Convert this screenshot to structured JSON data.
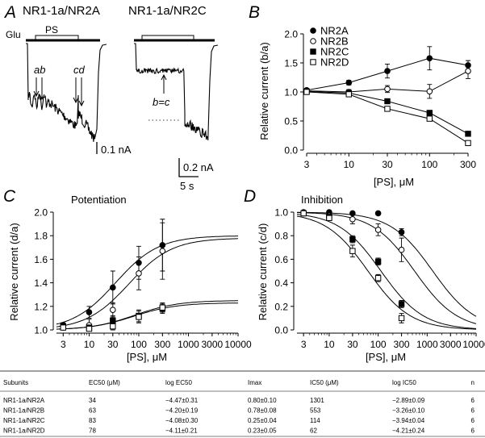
{
  "panel_a": {
    "letter": "A",
    "title_left": "NR1-1a/NR2A",
    "title_right": "NR1-1a/NR2C",
    "glu_label": "Glu",
    "ps_label": "PS",
    "label_ab": "ab",
    "label_cd": "cd",
    "label_bc": "b=c",
    "scale_left": "0.1 nA",
    "scale_right_current": "0.2 nA",
    "scale_right_time": "5 s"
  },
  "chart_data": [
    {
      "id": "B",
      "letter": "B",
      "type": "line",
      "title": "",
      "xlabel": "[PS], μM",
      "ylabel": "Relative current (b/a)",
      "x_scale": "log",
      "x": [
        3,
        10,
        30,
        100,
        300
      ],
      "x_tick_labels": [
        "3",
        "10",
        "30",
        "100",
        "300"
      ],
      "ylim": [
        0.0,
        2.0
      ],
      "y_ticks": [
        0.0,
        0.5,
        1.0,
        1.5,
        2.0
      ],
      "y_tick_labels": [
        "0.0",
        "0.5",
        "1.0",
        "1.5",
        "2.0"
      ],
      "legend_position": "top-left",
      "series": [
        {
          "name": "NR2A",
          "marker": "filled-circle",
          "values": [
            1.03,
            1.16,
            1.36,
            1.58,
            1.46
          ],
          "errors": [
            0.03,
            0.04,
            0.12,
            0.2,
            0.08
          ]
        },
        {
          "name": "NR2B",
          "marker": "open-circle",
          "values": [
            1.02,
            1.0,
            1.05,
            1.01,
            1.36
          ],
          "errors": [
            0.03,
            0.04,
            0.06,
            0.12,
            0.13
          ]
        },
        {
          "name": "NR2C",
          "marker": "filled-square",
          "values": [
            1.01,
            0.98,
            0.84,
            0.64,
            0.28
          ],
          "errors": [
            0.02,
            0.05,
            0.04,
            0.03,
            0.03
          ]
        },
        {
          "name": "NR2D",
          "marker": "open-square",
          "values": [
            1.0,
            0.96,
            0.71,
            0.54,
            0.12
          ],
          "errors": [
            0.02,
            0.03,
            0.04,
            0.04,
            0.04
          ]
        }
      ]
    },
    {
      "id": "C",
      "letter": "C",
      "type": "scatter",
      "title": "Potentiation",
      "xlabel": "[PS], μM",
      "ylabel": "Relative current (d/a)",
      "x_scale": "log",
      "x": [
        3,
        10,
        30,
        100,
        300
      ],
      "x_tick_labels": [
        "3",
        "10",
        "30",
        "100",
        "300",
        "1000",
        "3000",
        "10000"
      ],
      "x_ticks": [
        3,
        10,
        30,
        100,
        300,
        1000,
        3000,
        10000
      ],
      "ylim": [
        1.0,
        2.0
      ],
      "y_ticks": [
        1.0,
        1.2,
        1.4,
        1.6,
        1.8,
        2.0
      ],
      "y_tick_labels": [
        "1.0",
        "1.2",
        "1.4",
        "1.6",
        "1.8",
        "2.0"
      ],
      "series": [
        {
          "name": "NR2A",
          "marker": "filled-circle",
          "values": [
            1.04,
            1.15,
            1.36,
            1.57,
            1.72
          ],
          "errors": [
            0.02,
            0.05,
            0.14,
            0.14,
            0.22
          ],
          "fit": {
            "ec50": 34,
            "emax": 0.8
          }
        },
        {
          "name": "NR2B",
          "marker": "open-circle",
          "values": [
            1.02,
            1.04,
            1.17,
            1.48,
            1.67
          ],
          "errors": [
            0.02,
            0.05,
            0.06,
            0.14,
            0.24
          ],
          "fit": {
            "ec50": 63,
            "emax": 0.78
          }
        },
        {
          "name": "NR2C",
          "marker": "filled-square",
          "values": [
            1.03,
            1.02,
            1.08,
            1.12,
            1.18
          ],
          "errors": [
            0.02,
            0.02,
            0.04,
            0.05,
            0.04
          ],
          "fit": {
            "ec50": 83,
            "emax": 0.25
          }
        },
        {
          "name": "NR2D",
          "marker": "open-square",
          "values": [
            1.02,
            1.01,
            1.03,
            1.11,
            1.19
          ],
          "errors": [
            0.02,
            0.02,
            0.03,
            0.05,
            0.04
          ],
          "fit": {
            "ec50": 78,
            "emax": 0.23
          }
        }
      ]
    },
    {
      "id": "D",
      "letter": "D",
      "type": "scatter",
      "title": "Inhibition",
      "xlabel": "[PS], μM",
      "ylabel": "Relative current (c/d)",
      "x_scale": "log",
      "x": [
        3,
        10,
        30,
        100,
        300
      ],
      "x_tick_labels": [
        "3",
        "10",
        "30",
        "100",
        "300",
        "1000",
        "3000",
        "10000"
      ],
      "x_ticks": [
        3,
        10,
        30,
        100,
        300,
        1000,
        3000,
        10000
      ],
      "ylim": [
        0.0,
        1.0
      ],
      "y_ticks": [
        0.0,
        0.2,
        0.4,
        0.6,
        0.8,
        1.0
      ],
      "y_tick_labels": [
        "0.0",
        "0.2",
        "0.4",
        "0.6",
        "0.8",
        "1.0"
      ],
      "series": [
        {
          "name": "NR2A",
          "marker": "filled-circle",
          "values": [
            1.0,
            1.0,
            0.99,
            0.99,
            0.83
          ],
          "errors": [
            0.01,
            0.01,
            0.01,
            0.01,
            0.03
          ],
          "fit": {
            "ic50": 1301
          }
        },
        {
          "name": "NR2B",
          "marker": "open-circle",
          "values": [
            0.99,
            0.97,
            0.94,
            0.85,
            0.68
          ],
          "errors": [
            0.01,
            0.02,
            0.04,
            0.05,
            0.1
          ],
          "fit": {
            "ic50": 553
          }
        },
        {
          "name": "NR2C",
          "marker": "filled-square",
          "values": [
            0.99,
            0.96,
            0.77,
            0.58,
            0.22
          ],
          "errors": [
            0.01,
            0.02,
            0.03,
            0.03,
            0.03
          ],
          "fit": {
            "ic50": 114
          }
        },
        {
          "name": "NR2D",
          "marker": "open-square",
          "values": [
            0.99,
            0.95,
            0.67,
            0.44,
            0.1
          ],
          "errors": [
            0.01,
            0.02,
            0.05,
            0.03,
            0.04
          ],
          "fit": {
            "ic50": 62
          }
        }
      ]
    }
  ],
  "table": {
    "headers": [
      "Subunits",
      "EC50 (μM)",
      "log EC50",
      "Imax",
      "IC50 (μM)",
      "log IC50",
      "n"
    ],
    "rows": [
      [
        "NR1-1a/NR2A",
        "34",
        "−4.47±0.31",
        "0.80±0.10",
        "1301",
        "−2.89±0.09",
        "6"
      ],
      [
        "NR1-1a/NR2B",
        "63",
        "−4.20±0.19",
        "0.78±0.08",
        "553",
        "−3.26±0.10",
        "6"
      ],
      [
        "NR1-1a/NR2C",
        "83",
        "−4.08±0.30",
        "0.25±0.04",
        "114",
        "−3.94±0.04",
        "6"
      ],
      [
        "NR1-1a/NR2D",
        "78",
        "−4.11±0.21",
        "0.23±0.05",
        "62",
        "−4.21±0.24",
        "6"
      ]
    ]
  }
}
